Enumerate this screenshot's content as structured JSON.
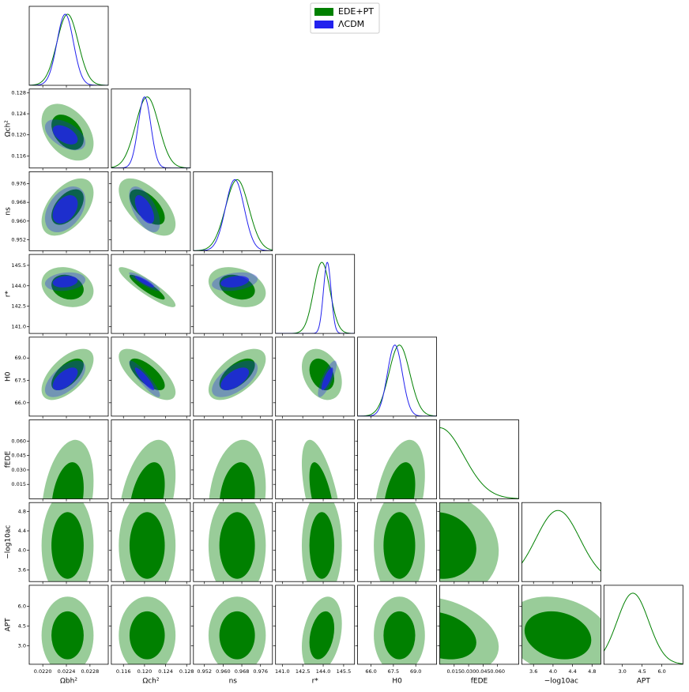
{
  "chart_data": {
    "type": "corner",
    "legend": "upper center",
    "params": [
      {
        "label": "Ωbh²",
        "lim": [
          0.02177,
          0.02311
        ],
        "ticks": [
          {
            "value": 0.022,
            "label": "0.0220"
          },
          0.0224,
          0.0228
        ]
      },
      {
        "label": "Ωch²",
        "lim": [
          0.1137,
          0.1287
        ],
        "ticks": [
          0.116,
          {
            "value": 0.12,
            "label": "0.120"
          },
          0.124,
          0.128
        ]
      },
      {
        "label": "ns",
        "lim": [
          0.9473,
          0.9811
        ],
        "ticks": [
          0.952,
          {
            "value": 0.96,
            "label": "0.960"
          },
          0.968,
          0.976
        ]
      },
      {
        "label": "r*",
        "lim": [
          140.5,
          146.3
        ],
        "ticks": [
          {
            "value": 141,
            "label": "141.0"
          },
          142.5,
          {
            "value": 144,
            "label": "144.0"
          },
          145.5
        ]
      },
      {
        "label": "H0",
        "lim": [
          65.1,
          70.4
        ],
        "ticks": [
          {
            "value": 66,
            "label": "66.0"
          },
          67.5,
          {
            "value": 69,
            "label": "69.0"
          }
        ]
      },
      {
        "label": "fEDE",
        "lim": [
          0,
          0.082
        ],
        "ticks": [
          0.015,
          {
            "value": 0.03,
            "label": "0.030"
          },
          0.045,
          {
            "value": 0.06,
            "label": "0.060"
          }
        ]
      },
      {
        "label": "−log10ac",
        "lim": [
          3.36,
          4.98
        ],
        "ticks": [
          3.6,
          {
            "value": 4,
            "label": "4.0"
          },
          4.4,
          4.8
        ]
      },
      {
        "label": "APT",
        "lim": [
          1.6,
          7.6
        ],
        "ticks": [
          {
            "value": 3,
            "label": "3.0"
          },
          4.5,
          {
            "value": 6,
            "label": "6.0"
          }
        ]
      }
    ],
    "series": [
      {
        "name": "EDE+PT",
        "color": "#008000",
        "mean": [
          0.02242,
          0.1205,
          0.966,
          143.9,
          67.9,
          0,
          4.1,
          3.8
        ],
        "sigma": [
          0.00018,
          0.0022,
          0.005,
          0.6,
          0.7,
          0.025,
          0.45,
          1.2
        ],
        "corr": [
          [],
          [
            -0.4
          ],
          [
            0.5,
            -0.6
          ],
          [
            -0.2,
            -0.9,
            -0.3
          ],
          [
            0.6,
            -0.7,
            0.6,
            -0.3
          ],
          [
            0.3,
            0.4,
            0.2,
            -0.6,
            0.4
          ],
          [
            0,
            0,
            0,
            0,
            0,
            -0.1
          ],
          [
            0,
            0,
            0,
            0.3,
            0,
            -0.3,
            -0.2
          ]
        ]
      },
      {
        "name": "ΛCDM",
        "color": "#2222ee",
        "mean": [
          0.02238,
          0.12,
          0.965,
          144.3,
          67.6,
          null,
          null,
          null
        ],
        "sigma": [
          0.00014,
          0.0012,
          0.004,
          0.28,
          0.5,
          null,
          null,
          null
        ],
        "corr": [
          [],
          [
            -0.5
          ],
          [
            0.4,
            -0.6
          ],
          [
            0.2,
            -0.9,
            0.3
          ],
          [
            0.6,
            -0.9,
            0.6,
            0.8
          ]
        ]
      }
    ]
  }
}
